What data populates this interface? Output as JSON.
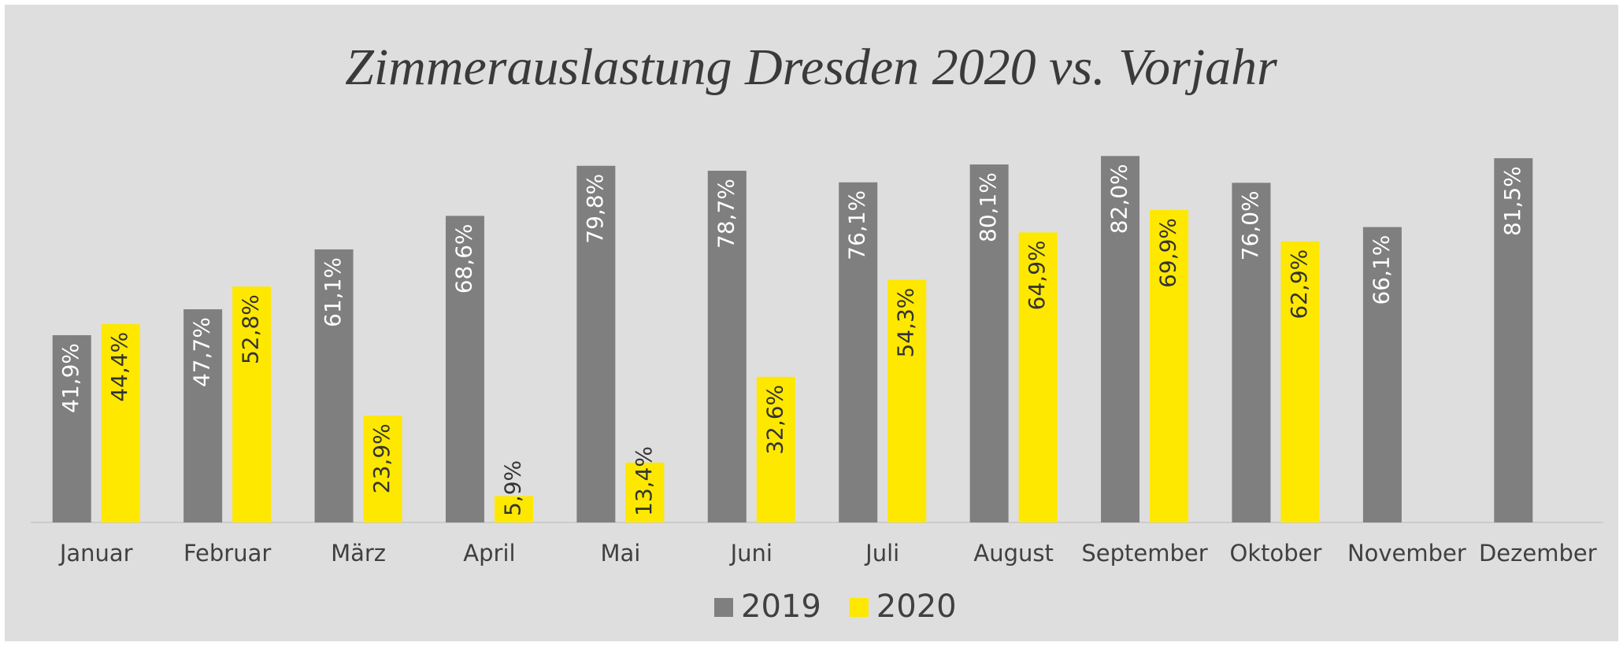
{
  "chart_data": {
    "type": "bar",
    "title": "Zimmerauslastung Dresden 2020 vs. Vorjahr",
    "categories": [
      "Januar",
      "Februar",
      "März",
      "April",
      "Mai",
      "Juni",
      "Juli",
      "August",
      "September",
      "Oktober",
      "November",
      "Dezember"
    ],
    "series": [
      {
        "name": "2019",
        "color": "#7f7f7f",
        "values": [
          41.9,
          47.7,
          61.1,
          68.6,
          79.8,
          78.7,
          76.1,
          80.1,
          82.0,
          76.0,
          66.1,
          81.5
        ],
        "value_labels": [
          "41,9%",
          "47,7%",
          "61,1%",
          "68,6%",
          "79,8%",
          "78,7%",
          "76,1%",
          "80,1%",
          "82,0%",
          "76,0%",
          "66,1%",
          "81,5%"
        ]
      },
      {
        "name": "2020",
        "color": "#ffe800",
        "values": [
          44.4,
          52.8,
          23.9,
          5.9,
          13.4,
          32.6,
          54.3,
          64.9,
          69.9,
          62.9,
          null,
          null
        ],
        "value_labels": [
          "44,4%",
          "52,8%",
          "23,9%",
          "5,9%",
          "13,4%",
          "32,6%",
          "54,3%",
          "64,9%",
          "69,9%",
          "62,9%",
          null,
          null
        ]
      }
    ],
    "ylim": [
      0,
      100
    ],
    "legend": "bottom"
  }
}
